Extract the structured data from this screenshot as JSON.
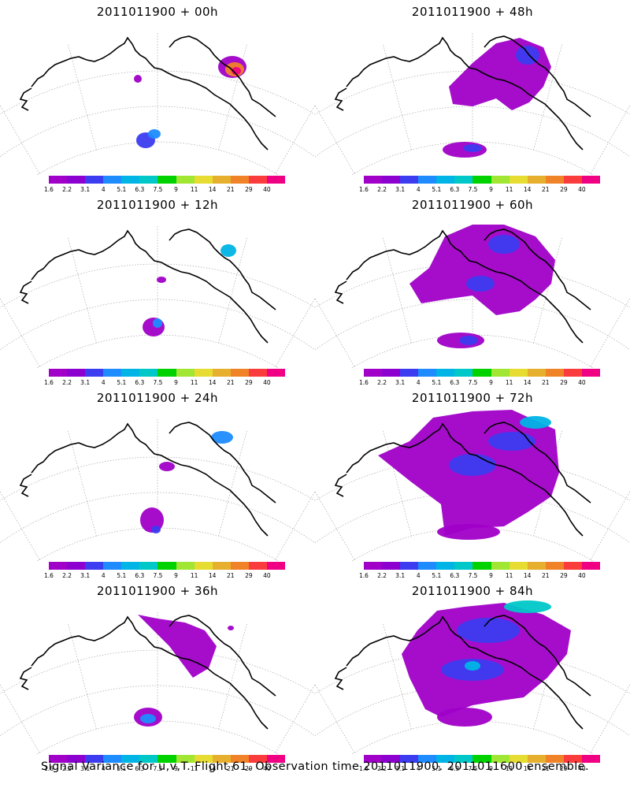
{
  "footer_caption": "Signal Variance for u,v,T. Flight 61. Observation time 2011011900. 2011011600 ensemble.",
  "colorbar": {
    "labels": [
      "1.6",
      "2.2",
      "3.1",
      "4",
      "5.1",
      "6.3",
      "7.5",
      "9",
      "11",
      "14",
      "21",
      "29",
      "40"
    ],
    "colors": [
      "#a000c8",
      "#8c00d0",
      "#3c3cf0",
      "#1e8cff",
      "#00b4e6",
      "#00c8c8",
      "#00d200",
      "#a0e632",
      "#e6dc32",
      "#e6af2d",
      "#f08228",
      "#fa3c3c",
      "#f00082"
    ]
  },
  "panels": [
    {
      "title": "2011011900 + 00h"
    },
    {
      "title": "2011011900 + 48h"
    },
    {
      "title": "2011011900 + 12h"
    },
    {
      "title": "2011011900 + 60h"
    },
    {
      "title": "2011011900 + 24h"
    },
    {
      "title": "2011011900 + 72h"
    },
    {
      "title": "2011011900 + 36h"
    },
    {
      "title": "2011011900 + 84h"
    }
  ]
}
